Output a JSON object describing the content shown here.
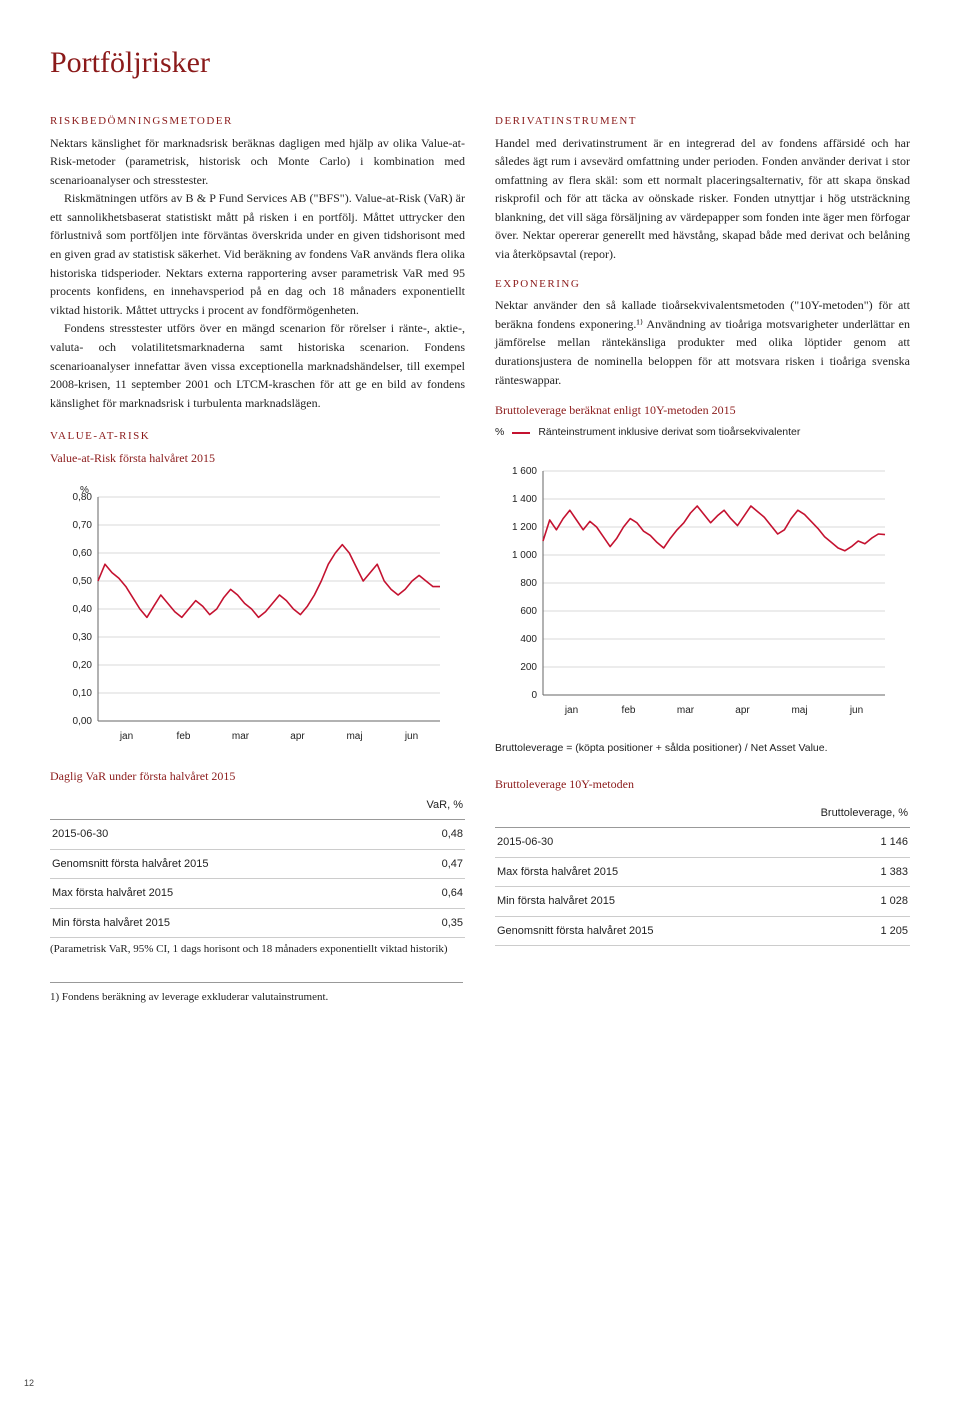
{
  "page_title": "Portföljrisker",
  "page_number": "12",
  "left": {
    "h1": "RISKBEDÖMNINGSMETODER",
    "p1": "Nektars känslighet för marknadsrisk beräknas dagligen med hjälp av olika Value-at-Risk-metoder (parametrisk, historisk och Monte Carlo) i kombination med scenarioanalyser och stresstester.",
    "p2": "Riskmätningen utförs av B & P Fund Services AB (\"BFS\"). Value-at-Risk (VaR) är ett sannolikhetsbaserat statistiskt mått på risken i en portfölj. Måttet uttrycker den förlustnivå som portföljen inte förväntas överskrida under en given tidshorisont med en given grad av statistisk säkerhet. Vid beräkning av fondens VaR används flera olika historiska tidsperioder. Nektars externa rapportering avser parametrisk VaR med 95 procents konfidens, en innehavsperiod på en dag och 18 månaders exponentiellt viktad historik. Måttet uttrycks i procent av fondförmögenheten.",
    "p3": "Fondens stresstester utförs över en mängd scenarion för rörelser i ränte-, aktie-, valuta- och volatilitetsmarknaderna samt historiska scenarion. Fondens scenarioanalyser innefattar även vissa exceptionella marknadshändelser, till exempel 2008-krisen, 11 september 2001 och LTCM-kraschen för att ge en bild av fondens känslighet för marknadsrisk i turbulenta marknadslägen.",
    "h2": "VALUE-AT-RISK",
    "chart1_title": "Value-at-Risk första halvåret 2015",
    "chart1_yaxis_unit": "%",
    "table1_title": "Daglig VaR under första halvåret 2015",
    "table1_head": "VaR, %",
    "table1_rows": [
      [
        "2015-06-30",
        "0,48"
      ],
      [
        "Genomsnitt första halvåret 2015",
        "0,47"
      ],
      [
        "Max första halvåret 2015",
        "0,64"
      ],
      [
        "Min första halvåret 2015",
        "0,35"
      ]
    ],
    "table1_note": "(Parametrisk VaR, 95% CI, 1 dags horisont och 18 månaders exponentiellt viktad historik)"
  },
  "right": {
    "h1": "DERIVATINSTRUMENT",
    "p1": "Handel med derivatinstrument är en integrerad del av fondens affärsidé och har således ägt rum i avsevärd omfattning under perioden. Fonden använder derivat i stor omfattning av flera skäl: som ett normalt placeringsalternativ, för att skapa önskad riskprofil och för att täcka av oönskade risker. Fonden utnyttjar i hög utsträckning blankning, det vill säga försäljning av värdepapper som fonden inte äger men förfogar över. Nektar opererar generellt med hävstång, skapad både med derivat och belåning via återköpsavtal (repor).",
    "h2": "EXPONERING",
    "p2": "Nektar använder den så kallade tioårsekvivalentsmetoden (\"10Y-metoden\") för att beräkna fondens exponering.¹⁾ Användning av tioåriga motsvarigheter underlättar en jämförelse mellan räntekänsliga produkter med olika löptider genom att durationsjustera de nominella beloppen för att motsvara risken i tioåriga svenska ränteswappar.",
    "chart2_title": "Bruttoleverage beräknat enligt 10Y-metoden 2015",
    "chart2_yaxis_unit": "%",
    "chart2_legend": "Ränteinstrument inklusive derivat som tioårsekvivalenter",
    "chart2_caption": "Bruttoleverage = (köpta positioner + sålda positioner) / Net Asset Value.",
    "table2_title": "Bruttoleverage 10Y-metoden",
    "table2_head": "Bruttoleverage, %",
    "table2_rows": [
      [
        "2015-06-30",
        "1 146"
      ],
      [
        "Max första halvåret 2015",
        "1 383"
      ],
      [
        "Min första halvåret 2015",
        "1 028"
      ],
      [
        "Genomsnitt första halvåret 2015",
        "1 205"
      ]
    ]
  },
  "footnote": "1) Fondens beräkning av leverage exkluderar valutainstrument.",
  "chart1": {
    "type": "line",
    "x_labels": [
      "jan",
      "feb",
      "mar",
      "apr",
      "maj",
      "jun"
    ],
    "y_ticks": [
      "0,00",
      "0,10",
      "0,20",
      "0,30",
      "0,40",
      "0,50",
      "0,60",
      "0,70",
      "0,80"
    ],
    "ylim": [
      0,
      0.8
    ],
    "line_color": "#c41230",
    "line_width": 1.6,
    "grid_color": "#d9d9d9",
    "axis_color": "#666",
    "background_color": "#ffffff",
    "font_family": "Arial",
    "tick_fontsize": 10,
    "values": [
      0.5,
      0.56,
      0.53,
      0.51,
      0.48,
      0.44,
      0.4,
      0.37,
      0.41,
      0.45,
      0.42,
      0.39,
      0.37,
      0.4,
      0.43,
      0.41,
      0.38,
      0.4,
      0.44,
      0.47,
      0.45,
      0.42,
      0.4,
      0.37,
      0.39,
      0.42,
      0.45,
      0.43,
      0.4,
      0.38,
      0.41,
      0.45,
      0.5,
      0.56,
      0.6,
      0.63,
      0.6,
      0.55,
      0.5,
      0.53,
      0.56,
      0.5,
      0.47,
      0.45,
      0.47,
      0.5,
      0.52,
      0.5,
      0.48,
      0.48
    ]
  },
  "chart2": {
    "type": "line",
    "x_labels": [
      "jan",
      "feb",
      "mar",
      "apr",
      "maj",
      "jun"
    ],
    "y_ticks": [
      "0",
      "200",
      "400",
      "600",
      "800",
      "1 000",
      "1 200",
      "1 400",
      "1 600"
    ],
    "ylim": [
      0,
      1600
    ],
    "line_color": "#c41230",
    "line_width": 1.6,
    "grid_color": "#d9d9d9",
    "axis_color": "#666",
    "background_color": "#ffffff",
    "font_family": "Arial",
    "tick_fontsize": 10,
    "values": [
      1100,
      1250,
      1180,
      1260,
      1320,
      1250,
      1180,
      1240,
      1200,
      1130,
      1060,
      1120,
      1200,
      1260,
      1230,
      1170,
      1140,
      1090,
      1050,
      1120,
      1180,
      1230,
      1300,
      1350,
      1290,
      1230,
      1280,
      1320,
      1260,
      1210,
      1280,
      1350,
      1310,
      1270,
      1210,
      1150,
      1180,
      1260,
      1320,
      1290,
      1240,
      1190,
      1130,
      1090,
      1050,
      1030,
      1060,
      1100,
      1080,
      1120,
      1150,
      1146
    ]
  }
}
